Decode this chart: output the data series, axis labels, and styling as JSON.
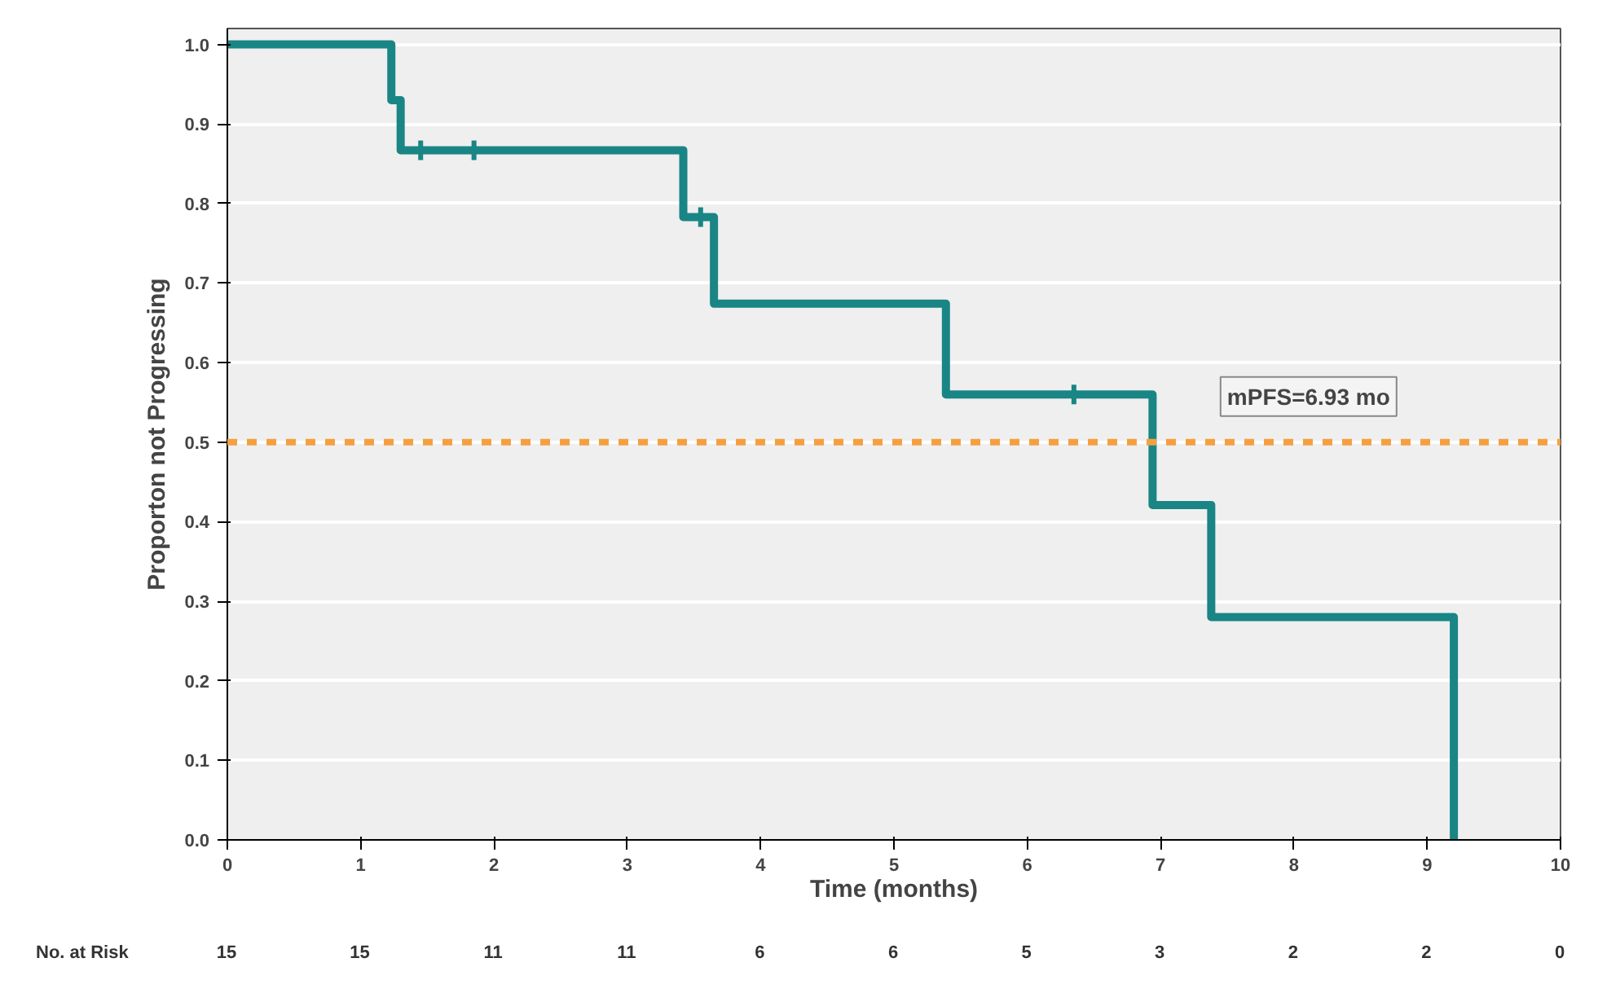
{
  "chart_data": {
    "type": "step",
    "xlabel": "Time (months)",
    "ylabel": "Proporton not Progressing",
    "xlim": [
      0,
      10
    ],
    "ylim": [
      0,
      1.02
    ],
    "xticks": [
      0,
      1,
      2,
      3,
      4,
      5,
      6,
      7,
      8,
      9,
      10
    ],
    "yticks": [
      {
        "value": 0,
        "label": "0.0"
      },
      0.1,
      0.2,
      0.3,
      0.4,
      0.5,
      0.6,
      0.7,
      0.8,
      0.9,
      {
        "value": 1,
        "label": "1.0"
      }
    ],
    "grid": "y",
    "line_style": "solid",
    "series": [
      {
        "color": "#1a8585",
        "x": [
          0,
          1.23,
          1.3,
          3.42,
          3.65,
          5.39,
          6.94,
          7.38,
          9.2,
          9.2
        ],
        "values": [
          1.0,
          0.93,
          0.867,
          0.783,
          0.674,
          0.56,
          0.421,
          0.28,
          0.28,
          0.0
        ]
      },
      {
        "type": "scatter",
        "marker": "cross",
        "color": "#1a8585",
        "x": [
          1.45,
          1.85,
          3.55,
          6.35
        ],
        "values": [
          0.867,
          0.867,
          0.783,
          0.56
        ]
      }
    ],
    "ref_lines": [
      {
        "axis": "y",
        "value": 0.5,
        "color": "#f5a040",
        "line_style": "dashed"
      }
    ],
    "annotations": [
      "mPFS=6.93 mo",
      "No. at Risk",
      "15",
      "15",
      "11",
      "11",
      "6",
      "6",
      "5",
      "3",
      "2",
      "2",
      "0"
    ]
  }
}
